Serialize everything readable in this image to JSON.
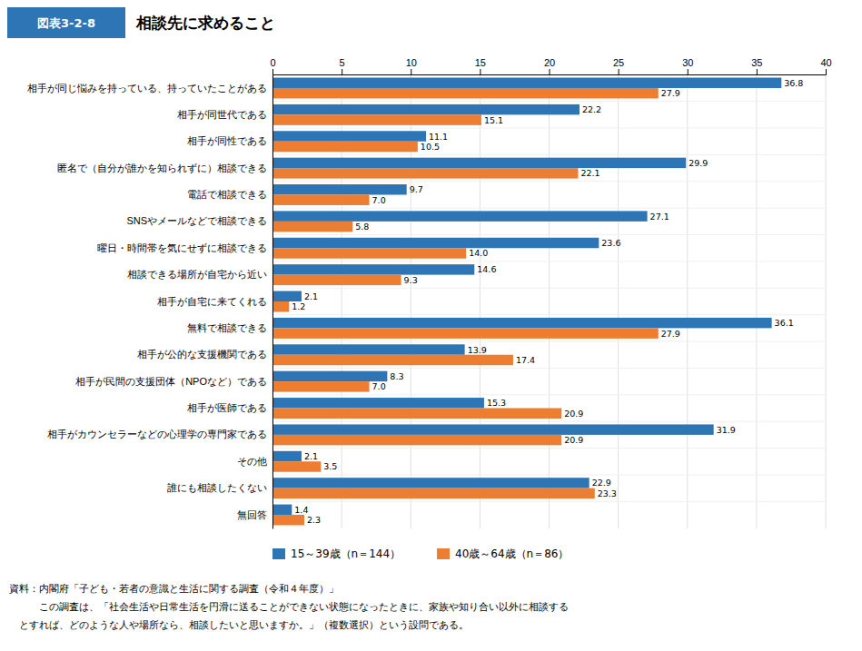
{
  "chart_data": {
    "type": "bar",
    "orientation": "horizontal",
    "title": "相談先に求めること",
    "annotations": [
      "図表3-2-8",
      "資料：内閣府「子ども・若者の意識と生活に関する調査（令和４年度）」",
      "　　　この調査は、「社会生活や日常生活を円滑に送ることができない状態になったときに、家族や知り合い以外に相談する",
      "　とすれば、どのような人や場所なら、相談したいと思いますか。」（複数選択）という設問である。"
    ],
    "categories": [
      "相手が同じ悩みを持っている、持っていたことがある",
      "相手が同世代である",
      "相手が同性である",
      "匿名で（自分が誰かを知られずに）相談できる",
      "電話で相談できる",
      "SNSやメールなどで相談できる",
      "曜日・時間帯を気にせずに相談できる",
      "相談できる場所が自宅から近い",
      "相手が自宅に来てくれる",
      "無料で相談できる",
      "相手が公的な支援機関である",
      "相手が民間の支援団体（NPOなど）である",
      "相手が医師である",
      "相手がカウンセラーなどの心理学の専門家である",
      "その他",
      "誰にも相談したくない",
      "無回答"
    ],
    "series": [
      {
        "name": "15～39歳（n＝144）",
        "color": "#2E75B6",
        "values": [
          36.8,
          22.2,
          11.1,
          29.9,
          9.7,
          27.1,
          23.6,
          14.6,
          2.1,
          36.1,
          13.9,
          8.3,
          15.3,
          31.9,
          2.1,
          22.9,
          1.4
        ]
      },
      {
        "name": "40歳～64歳（n＝86）",
        "color": "#ED7D31",
        "values": [
          27.9,
          15.1,
          10.5,
          22.1,
          7.0,
          5.8,
          14.0,
          9.3,
          1.2,
          27.9,
          17.4,
          7.0,
          20.9,
          20.9,
          3.5,
          23.3,
          2.3
        ],
        "value_labels": [
          "27.9",
          "15.1",
          "10.5",
          "22.1",
          "7.0",
          "5.8",
          "14.0",
          "9.3",
          "1.2",
          "27.9",
          "17.4",
          "7.0",
          "20.9",
          "20.9",
          "3.5",
          "23.3",
          "2.3"
        ]
      }
    ],
    "xlim": [
      0,
      40
    ],
    "xticks": [
      0,
      5,
      10,
      15,
      20,
      25,
      30,
      35,
      40
    ],
    "grid": true,
    "legend": "bottom",
    "data_labels": true
  }
}
